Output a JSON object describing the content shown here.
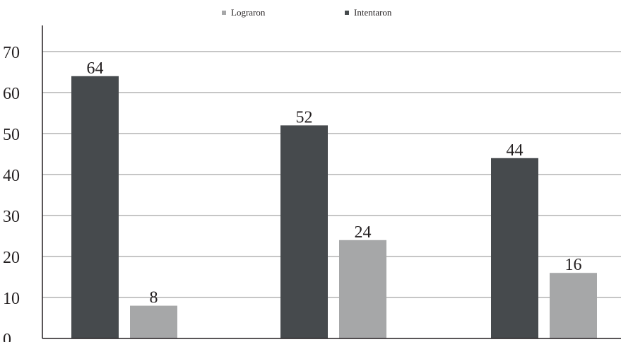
{
  "chart_data": {
    "type": "bar",
    "categories": [
      "",
      "",
      ""
    ],
    "series": [
      {
        "name": "Intentaron",
        "values": [
          64,
          52,
          44
        ],
        "color": "#464a4d"
      },
      {
        "name": "Lograron",
        "values": [
          8,
          24,
          16
        ],
        "color": "#a6a7a8"
      }
    ],
    "legend": {
      "placement": "top-center",
      "order": [
        "Lograron",
        "Intentaron"
      ]
    },
    "yticks": [
      "0",
      "10",
      "20",
      "30",
      "40",
      "50",
      "60",
      "70"
    ],
    "ylim": [
      0,
      75
    ],
    "grid": true,
    "title": "",
    "xlabel": "",
    "ylabel": ""
  }
}
